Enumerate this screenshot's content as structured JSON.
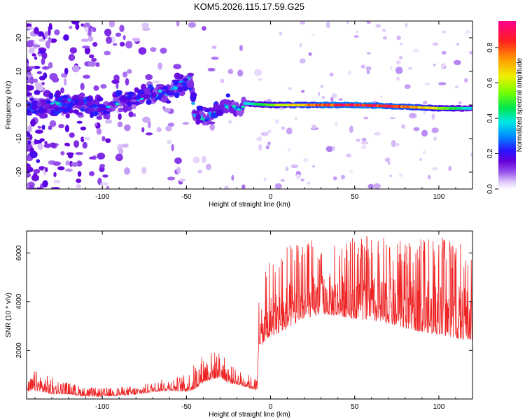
{
  "title": "KOM5.2026.115.17.59.G25",
  "colors": {
    "snr_line": "#ee2222",
    "frame": "#000000",
    "background": "#ffffff"
  },
  "chart_data": [
    {
      "type": "heatmap",
      "name": "spectrogram",
      "xlabel": "Height of straight line (km)",
      "ylabel": "Frequency (Hz)",
      "xlim": [
        -145,
        120
      ],
      "ylim": [
        -25,
        25
      ],
      "x_ticks": [
        -100,
        -50,
        0,
        50,
        100
      ],
      "x_tick_labels": [
        "-100",
        "-50",
        "0",
        "50",
        "100"
      ],
      "y_ticks": [
        -20,
        -10,
        0,
        10,
        20
      ],
      "y_tick_labels": [
        "-20",
        "-10",
        "0",
        "10",
        "20"
      ],
      "colorbar": {
        "label": "Normalized spectral amplitude",
        "range": [
          0,
          0.95
        ],
        "ticks": [
          0.0,
          0.2,
          0.4,
          0.6,
          0.8
        ],
        "tick_labels": [
          "0.0",
          "0.2",
          "0.4",
          "0.6",
          "0.8"
        ]
      },
      "ridge": {
        "description_points_km_hz": [
          [
            -145,
            -1
          ],
          [
            -120,
            1
          ],
          [
            -100,
            -1
          ],
          [
            -85,
            2
          ],
          [
            -70,
            3
          ],
          [
            -60,
            4
          ],
          [
            -55,
            6
          ],
          [
            -50,
            7
          ],
          [
            -48,
            9
          ],
          [
            -45,
            -3
          ],
          [
            -38,
            -4
          ],
          [
            -32,
            -1
          ],
          [
            -25,
            0
          ],
          [
            -18,
            -2
          ],
          [
            -16,
            0.5
          ],
          [
            0,
            0
          ],
          [
            20,
            0
          ],
          [
            50,
            0
          ],
          [
            80,
            -0.5
          ],
          [
            100,
            -1
          ],
          [
            120,
            -1
          ]
        ]
      }
    },
    {
      "type": "line",
      "name": "snr",
      "xlabel": "Height of straight line (km)",
      "ylabel": "SNR (10 * v/v)",
      "xlim": [
        -145,
        120
      ],
      "ylim": [
        0,
        6900
      ],
      "x_ticks": [
        -100,
        -50,
        0,
        50,
        100
      ],
      "x_tick_labels": [
        "-100",
        "-50",
        "0",
        "50",
        "100"
      ],
      "y_ticks": [
        2000,
        4000,
        6000
      ],
      "y_tick_labels": [
        "2000",
        "4000",
        "6000"
      ],
      "series": [
        {
          "name": "SNR",
          "envelope_x": [
            -145,
            -140,
            -130,
            -120,
            -110,
            -100,
            -90,
            -80,
            -70,
            -60,
            -50,
            -45,
            -40,
            -35,
            -30,
            -25,
            -20,
            -15,
            -10,
            -8,
            -7,
            -5,
            0,
            5,
            10,
            20,
            30,
            40,
            50,
            60,
            70,
            80,
            90,
            100,
            110,
            120
          ],
          "base_y": [
            300,
            350,
            200,
            200,
            100,
            100,
            150,
            180,
            300,
            350,
            300,
            400,
            700,
            800,
            900,
            650,
            600,
            500,
            400,
            300,
            2300,
            2200,
            2600,
            2700,
            2900,
            3300,
            3500,
            3400,
            3300,
            3200,
            3100,
            2900,
            2750,
            2650,
            2500,
            2400
          ],
          "peak_y": [
            600,
            1200,
            900,
            700,
            500,
            450,
            500,
            550,
            700,
            900,
            1000,
            1500,
            1900,
            2000,
            2000,
            1500,
            1200,
            1100,
            900,
            900,
            4300,
            5000,
            5800,
            6100,
            6300,
            6500,
            6600,
            6600,
            6700,
            6700,
            6600,
            6600,
            6600,
            6700,
            6500,
            6500
          ]
        }
      ]
    }
  ]
}
